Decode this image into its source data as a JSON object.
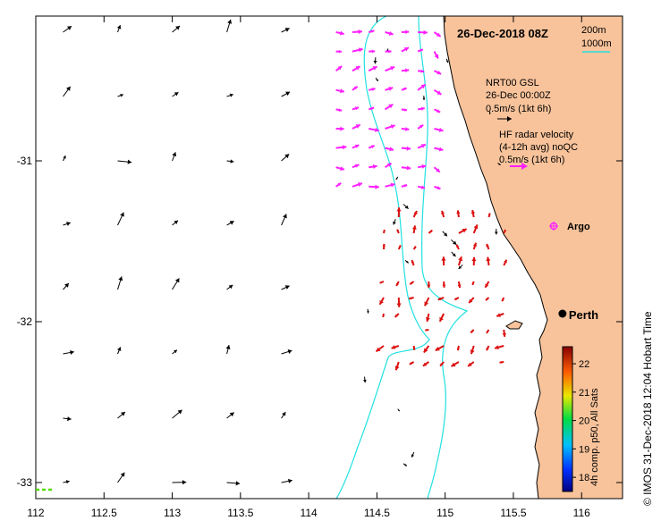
{
  "title": "26-Dec-2018 08Z",
  "colors": {
    "land": "#f8c39b",
    "isobath": "#22e0e0",
    "model_arrow": "#000000",
    "hf_arrow": "#ff1fff",
    "sat_arrow": "#dd1111",
    "argo": "#ff1fff",
    "scale_glider": "#55dd00"
  },
  "axes": {
    "x_ticks": [
      "112",
      "112.5",
      "113",
      "113.5",
      "114",
      "114.5",
      "115",
      "115.5",
      "116"
    ],
    "y_ticks": [
      "-31",
      "-32",
      "-33"
    ],
    "lon_range": [
      112,
      116.3
    ],
    "lat_range": [
      -33.1,
      -30.1
    ]
  },
  "bathymetry_legend": {
    "line1": "200m",
    "line2": "1000m"
  },
  "model_legend": {
    "name": "NRT00 GSL",
    "time": "26-Dec 00:00Z",
    "scale": "0.5m/s (1kt 6h)"
  },
  "hf_legend": {
    "line1": "HF radar velocity",
    "line2": "(4-12h avg) noQC",
    "scale": "0.5m/s (1kt 6h)"
  },
  "argo_label": "Argo",
  "city": {
    "name": "Perth",
    "lon": 115.86,
    "lat": -31.95
  },
  "colorbar": {
    "ticks": [
      "22",
      "21",
      "20",
      "19",
      "18"
    ],
    "range": [
      17.5,
      22.6
    ],
    "label": "4h comp. p50, All Sats"
  },
  "credit": "© IMOS 31-Dec-2018 12:04 Hobart Time",
  "model_vectors": {
    "lons": [
      112.2,
      112.6,
      113.0,
      113.4,
      113.8
    ],
    "lats": [
      -30.2,
      -30.6,
      -31.0,
      -31.4,
      -31.8,
      -32.2,
      -32.6,
      -33.0
    ]
  }
}
